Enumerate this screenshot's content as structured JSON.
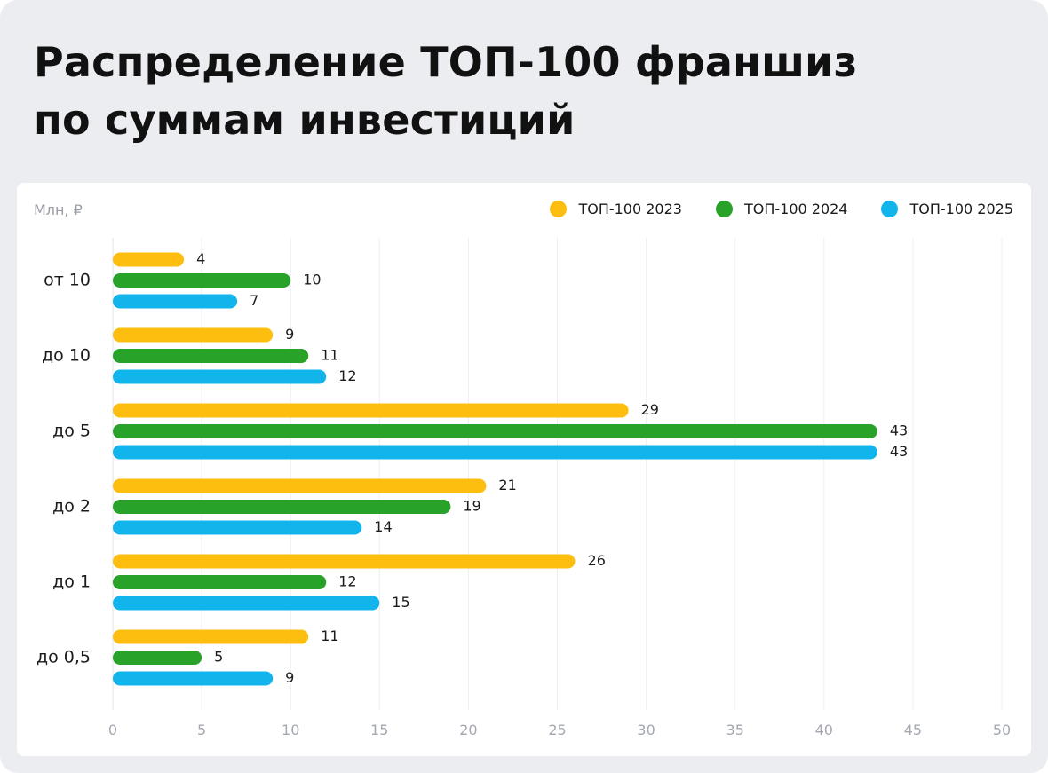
{
  "title": {
    "line1": "Распределение ТОП-100 франшиз",
    "line2": "по суммам инвестиций"
  },
  "chart_data": {
    "type": "bar",
    "orientation": "horizontal",
    "unit_label": "Млн, ₽",
    "categories": [
      "от 10",
      "до 10",
      "до 5",
      "до 2",
      "до 1",
      "до 0,5"
    ],
    "series": [
      {
        "name": "ТОП-100 2023",
        "color": "#fdbe0f",
        "values": [
          4,
          9,
          29,
          21,
          26,
          11
        ]
      },
      {
        "name": "ТОП-100 2024",
        "color": "#28a228",
        "values": [
          10,
          11,
          43,
          19,
          12,
          5
        ]
      },
      {
        "name": "ТОП-100 2025",
        "color": "#12b4ec",
        "values": [
          7,
          12,
          43,
          14,
          15,
          9
        ]
      }
    ],
    "xlim": [
      0,
      50
    ],
    "xticks": [
      0,
      5,
      10,
      15,
      20,
      25,
      30,
      35,
      40,
      45,
      50
    ],
    "grid": true,
    "legend_position": "top-right",
    "data_labels": true
  }
}
